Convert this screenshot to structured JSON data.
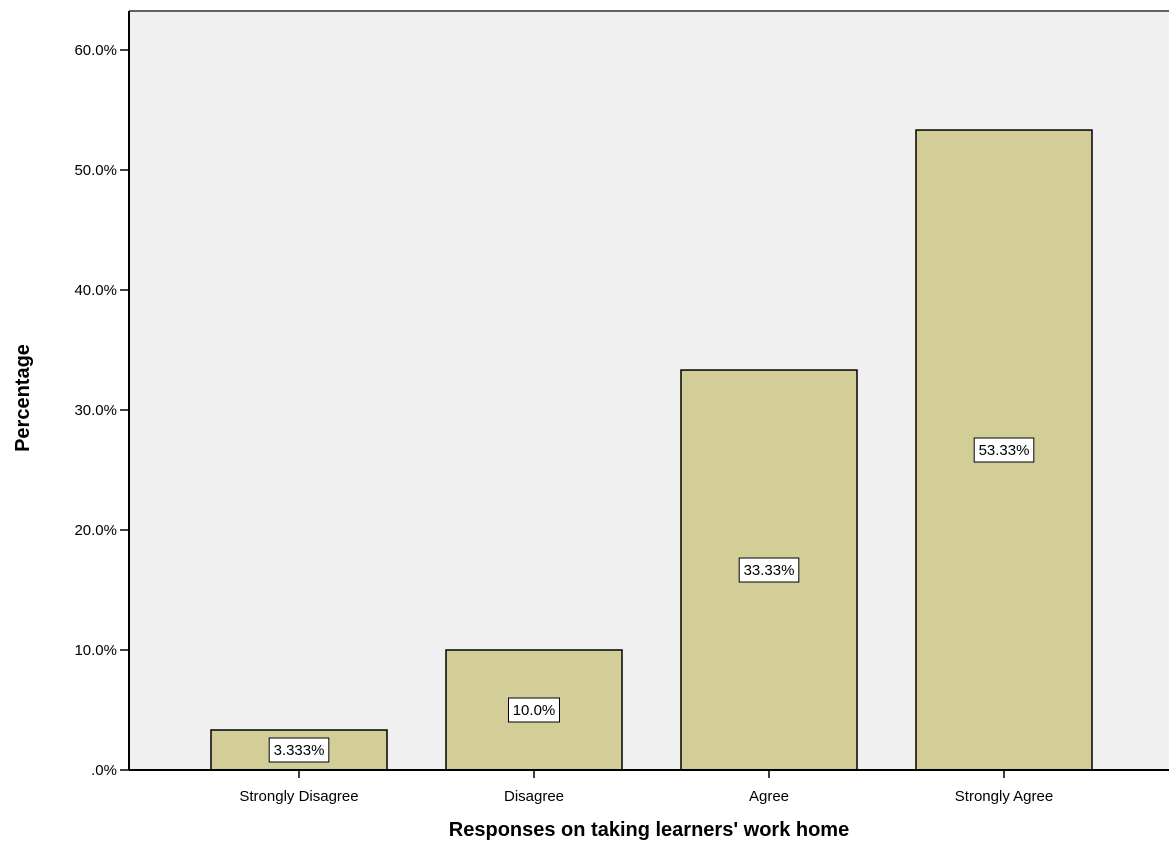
{
  "chart_data": {
    "type": "bar",
    "categories": [
      "Strongly Disagree",
      "Disagree",
      "Agree",
      "Strongly Agree"
    ],
    "values": [
      3.333,
      10.0,
      33.33,
      53.33
    ],
    "data_labels": [
      "3.333%",
      "10.0%",
      "33.33%",
      "53.33%"
    ],
    "xlabel": "Responses on taking learners' work home",
    "ylabel": "Percentage",
    "ylim": [
      0,
      60
    ],
    "yticks": [
      0,
      10,
      20,
      30,
      40,
      50,
      60
    ],
    "ytick_labels": [
      ".0%",
      "10.0%",
      "20.0%",
      "30.0%",
      "40.0%",
      "50.0%",
      "60.0%"
    ],
    "grid": false,
    "legend": "none",
    "colors": {
      "plot_background": "#f0f0f0",
      "bar_fill": "#d3ce97",
      "bar_stroke": "#000000",
      "label_box_fill": "#ffffff"
    }
  }
}
